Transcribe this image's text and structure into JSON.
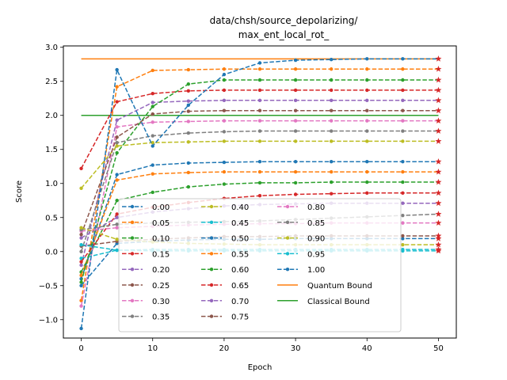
{
  "chart_data": {
    "type": "line",
    "title_lines": [
      "data/chsh/source_depolarizing/",
      "max_ent_local_rot_"
    ],
    "xlabel": "Epoch",
    "ylabel": "Score",
    "xlim": [
      -2.5,
      52.5
    ],
    "ylim": [
      -1.27,
      3.02
    ],
    "xticks": [
      0,
      10,
      20,
      30,
      40,
      50
    ],
    "yticks": [
      -1.0,
      -0.5,
      0.0,
      0.5,
      1.0,
      1.5,
      2.0,
      2.5,
      3.0
    ],
    "xtick_labels": [
      "0",
      "10",
      "20",
      "30",
      "40",
      "50"
    ],
    "ytick_labels": [
      "−1.0",
      "−0.5",
      "0.0",
      "0.5",
      "1.0",
      "1.5",
      "2.0",
      "2.5",
      "3.0"
    ],
    "grid": false,
    "legend_position": "lower-center",
    "x": [
      0,
      5,
      10,
      15,
      20,
      25,
      30,
      35,
      40,
      45,
      50
    ],
    "series": [
      {
        "name": "0.00",
        "color": "#1f77b4",
        "values": [
          -0.5,
          0.12,
          0.15,
          0.17,
          0.18,
          0.18,
          0.19,
          0.19,
          0.19,
          0.19,
          0.19
        ]
      },
      {
        "name": "0.05",
        "color": "#ff7f0e",
        "values": [
          -0.72,
          2.42,
          2.66,
          2.67,
          2.68,
          2.68,
          2.68,
          2.68,
          2.68,
          2.68,
          2.68
        ]
      },
      {
        "name": "0.10",
        "color": "#2ca02c",
        "values": [
          -0.3,
          0.75,
          0.87,
          0.95,
          0.99,
          1.01,
          1.01,
          1.02,
          1.02,
          1.02,
          1.02
        ]
      },
      {
        "name": "0.15",
        "color": "#d62728",
        "values": [
          1.22,
          2.2,
          2.32,
          2.36,
          2.37,
          2.37,
          2.37,
          2.37,
          2.37,
          2.37,
          2.37
        ]
      },
      {
        "name": "0.20",
        "color": "#9467bd",
        "values": [
          -0.2,
          1.93,
          2.19,
          2.21,
          2.22,
          2.22,
          2.22,
          2.22,
          2.22,
          2.22,
          2.22
        ]
      },
      {
        "name": "0.25",
        "color": "#8c564b",
        "values": [
          0.08,
          0.15,
          0.18,
          0.2,
          0.22,
          0.22,
          0.23,
          0.23,
          0.23,
          0.23,
          0.23
        ]
      },
      {
        "name": "0.30",
        "color": "#e377c2",
        "values": [
          -0.8,
          1.83,
          1.9,
          1.91,
          1.92,
          1.92,
          1.92,
          1.92,
          1.92,
          1.92,
          1.92
        ]
      },
      {
        "name": "0.35",
        "color": "#7f7f7f",
        "values": [
          0.0,
          1.6,
          1.7,
          1.74,
          1.76,
          1.77,
          1.77,
          1.77,
          1.77,
          1.77,
          1.77
        ]
      },
      {
        "name": "0.40",
        "color": "#bcbd22",
        "values": [
          0.93,
          1.55,
          1.6,
          1.61,
          1.62,
          1.62,
          1.62,
          1.62,
          1.62,
          1.62,
          1.62
        ]
      },
      {
        "name": "0.45",
        "color": "#17becf",
        "values": [
          -0.1,
          0.02,
          0.03,
          0.03,
          0.03,
          0.03,
          0.03,
          0.03,
          0.03,
          0.03,
          0.03
        ]
      },
      {
        "name": "0.50",
        "color": "#1f77b4",
        "values": [
          -0.4,
          1.13,
          1.27,
          1.3,
          1.31,
          1.32,
          1.32,
          1.32,
          1.32,
          1.32,
          1.32
        ]
      },
      {
        "name": "0.55",
        "color": "#ff7f0e",
        "values": [
          -0.35,
          1.05,
          1.14,
          1.16,
          1.17,
          1.17,
          1.17,
          1.17,
          1.17,
          1.17,
          1.17
        ]
      },
      {
        "name": "0.60",
        "color": "#2ca02c",
        "values": [
          -0.45,
          1.45,
          2.13,
          2.46,
          2.52,
          2.52,
          2.52,
          2.52,
          2.52,
          2.52,
          2.52
        ]
      },
      {
        "name": "0.65",
        "color": "#d62728",
        "values": [
          -0.15,
          0.55,
          0.65,
          0.72,
          0.78,
          0.82,
          0.84,
          0.85,
          0.86,
          0.86,
          0.86
        ]
      },
      {
        "name": "0.70",
        "color": "#9467bd",
        "values": [
          0.2,
          0.5,
          0.58,
          0.63,
          0.67,
          0.69,
          0.7,
          0.71,
          0.71,
          0.71,
          0.71
        ]
      },
      {
        "name": "0.75",
        "color": "#8c564b",
        "values": [
          0.25,
          1.68,
          2.02,
          2.06,
          2.07,
          2.07,
          2.07,
          2.07,
          2.07,
          2.07,
          2.07
        ]
      },
      {
        "name": "0.80",
        "color": "#e377c2",
        "values": [
          0.3,
          0.35,
          0.37,
          0.39,
          0.4,
          0.41,
          0.41,
          0.42,
          0.42,
          0.42,
          0.42
        ]
      },
      {
        "name": "0.85",
        "color": "#7f7f7f",
        "values": [
          0.32,
          0.4,
          0.42,
          0.43,
          0.44,
          0.45,
          0.47,
          0.49,
          0.51,
          0.53,
          0.55
        ]
      },
      {
        "name": "0.90",
        "color": "#bcbd22",
        "values": [
          0.35,
          0.18,
          0.14,
          0.12,
          0.11,
          0.1,
          0.1,
          0.1,
          0.1,
          0.1,
          0.1
        ]
      },
      {
        "name": "0.95",
        "color": "#17becf",
        "values": [
          0.1,
          0.02,
          0.01,
          0.01,
          0.01,
          0.01,
          0.01,
          0.01,
          0.01,
          0.01,
          0.01
        ]
      },
      {
        "name": "1.00",
        "color": "#1f77b4",
        "values": [
          -1.13,
          2.67,
          1.55,
          2.15,
          2.6,
          2.77,
          2.81,
          2.82,
          2.83,
          2.83,
          2.83
        ]
      }
    ],
    "reference_lines": [
      {
        "name": "Quantum Bound",
        "color": "#ff7f0e",
        "y": 2.83
      },
      {
        "name": "Classical Bound",
        "color": "#2ca02c",
        "y": 2.0
      }
    ]
  }
}
